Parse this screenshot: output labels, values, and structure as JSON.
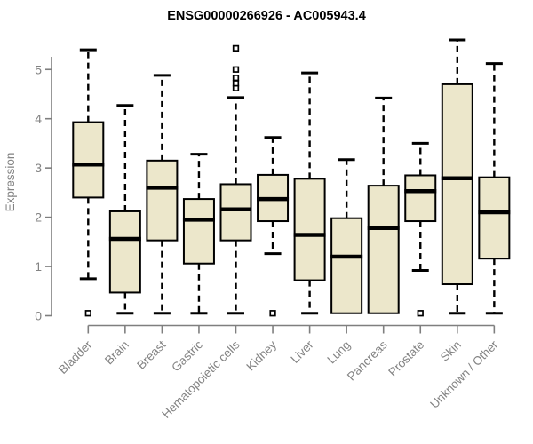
{
  "title": "ENSG00000266926 - AC005943.4",
  "colors": {
    "box_fill": "#ECE7CB",
    "box_stroke": "#000000",
    "median": "#000000",
    "whisker": "#000000",
    "axis": "#7F7F7F",
    "tick_text": "#838383",
    "title_text": "#000000",
    "background": "#FFFFFF"
  },
  "chart_data": {
    "type": "boxplot",
    "title": "ENSG00000266926 - AC005943.4",
    "xlabel": "",
    "ylabel": "Expression",
    "ylim": [
      0,
      5.7
    ],
    "yticks": [
      0,
      1,
      2,
      3,
      4,
      5
    ],
    "grid": false,
    "legend": "none",
    "x_label_rotation_deg": 45,
    "categories": [
      "Bladder",
      "Brain",
      "Breast",
      "Gastric",
      "Hematopoietic cells",
      "Kidney",
      "Liver",
      "Lung",
      "Pancreas",
      "Prostate",
      "Skin",
      "Unknown / Other"
    ],
    "series": [
      {
        "name": "Bladder",
        "min": 0.75,
        "q1": 2.4,
        "median": 3.07,
        "q3": 3.93,
        "max": 5.4,
        "outliers": [
          0.05
        ]
      },
      {
        "name": "Brain",
        "min": 0.05,
        "q1": 0.47,
        "median": 1.56,
        "q3": 2.12,
        "max": 4.27,
        "outliers": []
      },
      {
        "name": "Breast",
        "min": 0.05,
        "q1": 1.53,
        "median": 2.6,
        "q3": 3.15,
        "max": 4.88,
        "outliers": []
      },
      {
        "name": "Gastric",
        "min": 0.05,
        "q1": 1.06,
        "median": 1.95,
        "q3": 2.37,
        "max": 3.28,
        "outliers": []
      },
      {
        "name": "Hematopoietic cells",
        "min": 0.05,
        "q1": 1.53,
        "median": 2.16,
        "q3": 2.67,
        "max": 4.43,
        "outliers": [
          4.62,
          4.72,
          4.83,
          5.0,
          5.43
        ]
      },
      {
        "name": "Kidney",
        "min": 1.26,
        "q1": 1.92,
        "median": 2.37,
        "q3": 2.86,
        "max": 3.62,
        "outliers": [
          0.05
        ]
      },
      {
        "name": "Liver",
        "min": 0.05,
        "q1": 0.72,
        "median": 1.64,
        "q3": 2.78,
        "max": 4.93,
        "outliers": []
      },
      {
        "name": "Lung",
        "min": 0.05,
        "q1": 0.05,
        "median": 1.2,
        "q3": 1.98,
        "max": 3.17,
        "outliers": []
      },
      {
        "name": "Pancreas",
        "min": 0.05,
        "q1": 0.05,
        "median": 1.78,
        "q3": 2.64,
        "max": 4.42,
        "outliers": []
      },
      {
        "name": "Prostate",
        "min": 0.92,
        "q1": 1.92,
        "median": 2.53,
        "q3": 2.85,
        "max": 3.5,
        "outliers": [
          0.05
        ]
      },
      {
        "name": "Skin",
        "min": 0.05,
        "q1": 0.64,
        "median": 2.79,
        "q3": 4.7,
        "max": 5.6,
        "outliers": []
      },
      {
        "name": "Unknown / Other",
        "min": 0.05,
        "q1": 1.16,
        "median": 2.1,
        "q3": 2.81,
        "max": 5.12,
        "outliers": []
      }
    ]
  }
}
